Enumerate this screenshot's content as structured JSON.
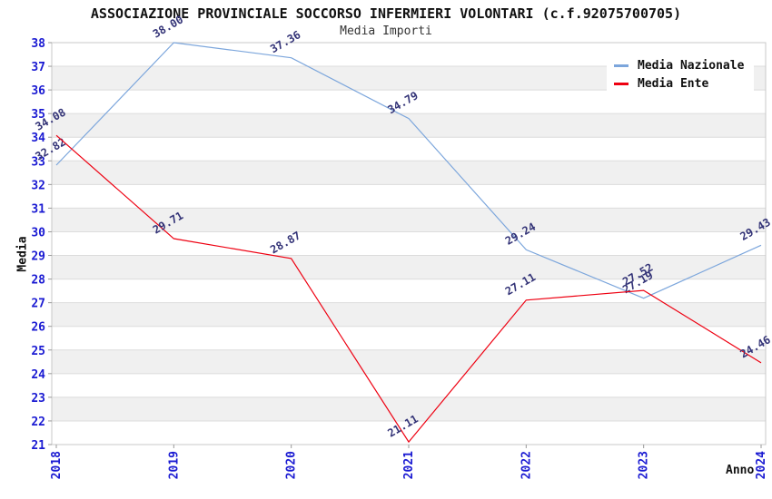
{
  "title": "ASSOCIAZIONE PROVINCIALE SOCCORSO INFERMIERI VOLONTARI (c.f.92075700705)",
  "subtitle": "Media Importi",
  "chart_data": {
    "type": "line",
    "x": [
      2018,
      2019,
      2020,
      2021,
      2022,
      2023,
      2024
    ],
    "series": [
      {
        "name": "Media Nazionale",
        "color": "#7CA6DC",
        "values": [
          32.82,
          38.0,
          37.36,
          34.79,
          29.24,
          27.19,
          29.43
        ]
      },
      {
        "name": "Media Ente",
        "color": "#EE0011",
        "values": [
          34.08,
          29.71,
          28.87,
          21.11,
          27.11,
          27.52,
          24.46
        ]
      }
    ],
    "xlabel": "Anno",
    "ylabel": "Media",
    "ylim": [
      21,
      38
    ],
    "ytick_step": 1,
    "grid": true,
    "banding": true,
    "legend_position": "top-right",
    "label_decimals": 2
  },
  "ui_colors": {
    "tick_label": "#1a1ad2",
    "data_label": "#333377",
    "band_gray": "#f0f0f0",
    "band_white": "#ffffff",
    "gridline": "#dcdcdc",
    "plot_border": "#c8c8c8",
    "tick_mark": "#999999"
  }
}
